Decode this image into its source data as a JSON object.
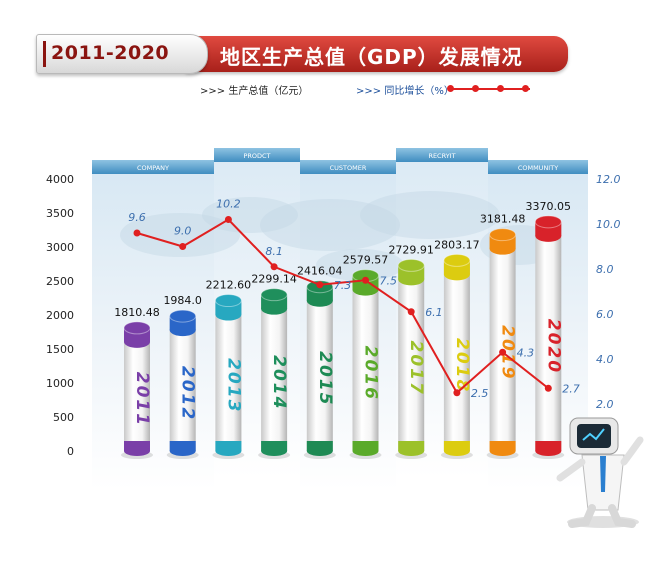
{
  "header": {
    "years": "2011-2020",
    "title": "地区生产总值（GDP）发展情况"
  },
  "legend": {
    "gdp_label": ">>> 生产总值（亿元）",
    "growth_label": ">>> 同比增长（%）"
  },
  "panel_labels": [
    "COMPANY",
    "PRODCT",
    "CUSTOMER",
    "RECRYIT",
    "COMMUNITY"
  ],
  "colors": {
    "bar_caps": [
      "#7a3fa8",
      "#2a66c8",
      "#27a8c0",
      "#1f8f5c",
      "#1e8a54",
      "#5aaa2a",
      "#9cc12a",
      "#dccc10",
      "#f08a10",
      "#d8222a"
    ],
    "line": "#e02020",
    "title_red": "#c8322a"
  },
  "chart_data": {
    "type": "bar",
    "categories": [
      "2011",
      "2012",
      "2013",
      "2014",
      "2015",
      "2016",
      "2017",
      "2018",
      "2019",
      "2020"
    ],
    "series": [
      {
        "name": "生产总值（亿元）",
        "type": "bar",
        "axis": "left",
        "values": [
          1810.48,
          1984.0,
          2212.6,
          2299.14,
          2416.04,
          2579.57,
          2729.91,
          2803.17,
          3181.48,
          3370.05
        ],
        "labels": [
          "1810.48",
          "1984.0",
          "2212.60",
          "2299.14",
          "2416.04",
          "2579.57",
          "2729.91",
          "2803.17",
          "3181.48",
          "3370.05"
        ]
      },
      {
        "name": "同比增长（%）",
        "type": "line",
        "axis": "right",
        "values": [
          9.6,
          9.0,
          10.2,
          8.1,
          7.3,
          7.5,
          6.1,
          2.5,
          4.3,
          2.7
        ],
        "labels": [
          "9.6",
          "9.0",
          "10.2",
          "8.1",
          "7.3",
          "7.5",
          "6.1",
          "2.5",
          "4.3",
          "2.7"
        ]
      }
    ],
    "left_axis": {
      "min": 0,
      "max": 4000,
      "ticks": [
        "0",
        "500",
        "1000",
        "1500",
        "2000",
        "2500",
        "3000",
        "3500",
        "4000"
      ]
    },
    "right_axis": {
      "min": 2.0,
      "max": 12.0,
      "ticks": [
        "2.0",
        "4.0",
        "6.0",
        "8.0",
        "10.0",
        "12.0"
      ]
    }
  }
}
